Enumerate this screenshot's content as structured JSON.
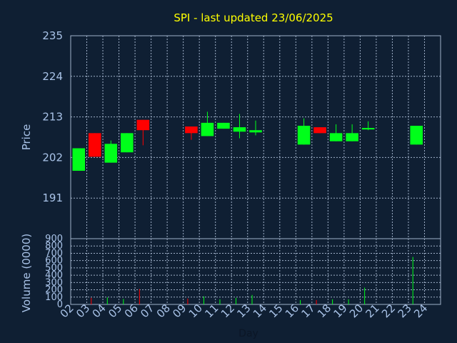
{
  "chart_data": {
    "type": "candlestick",
    "title": "SPI - last updated 23/06/2025",
    "xlabel": "Day",
    "colors": {
      "up": "#00ff1a",
      "down": "#ff0000",
      "title": "#ffff00",
      "axis": "#a9c3e8",
      "background": "#0f1f33"
    },
    "days": [
      "02",
      "03",
      "04",
      "05",
      "06",
      "07",
      "08",
      "09",
      "10",
      "11",
      "12",
      "13",
      "14",
      "15",
      "16",
      "17",
      "18",
      "19",
      "20",
      "21",
      "22",
      "23",
      "24"
    ],
    "price_panel": {
      "ylabel": "Price",
      "ylim": [
        180,
        235
      ],
      "yticks": [
        "235",
        "224",
        "213",
        "202",
        "191"
      ],
      "ytick_values": [
        235,
        224,
        213,
        202,
        191
      ],
      "candles": [
        {
          "day": 2,
          "open": 198.4,
          "close": 204.5,
          "high": 204.5,
          "low": 198.4
        },
        {
          "day": 3,
          "open": 208.6,
          "close": 202.2,
          "high": 208.6,
          "low": 202.2
        },
        {
          "day": 4,
          "open": 200.6,
          "close": 205.7,
          "high": 206.6,
          "low": 200.6
        },
        {
          "day": 5,
          "open": 203.4,
          "close": 208.6,
          "high": 208.6,
          "low": 203.4
        },
        {
          "day": 6,
          "open": 212.2,
          "close": 209.4,
          "high": 212.2,
          "low": 205.3
        },
        {
          "day": 9,
          "open": 210.4,
          "close": 208.6,
          "high": 210.4,
          "low": 206.8
        },
        {
          "day": 10,
          "open": 207.8,
          "close": 211.4,
          "high": 214.4,
          "low": 207.8
        },
        {
          "day": 11,
          "open": 209.8,
          "close": 211.4,
          "high": 211.4,
          "low": 209.8
        },
        {
          "day": 12,
          "open": 209.0,
          "close": 210.2,
          "high": 213.8,
          "low": 207.2
        },
        {
          "day": 13,
          "open": 208.8,
          "close": 209.4,
          "high": 212.0,
          "low": 208.0
        },
        {
          "day": 16,
          "open": 205.5,
          "close": 210.6,
          "high": 212.6,
          "low": 205.5
        },
        {
          "day": 17,
          "open": 210.2,
          "close": 208.6,
          "high": 210.2,
          "low": 208.6
        },
        {
          "day": 18,
          "open": 206.4,
          "close": 208.6,
          "high": 211.0,
          "low": 206.4
        },
        {
          "day": 19,
          "open": 206.4,
          "close": 208.6,
          "high": 211.0,
          "low": 206.4
        },
        {
          "day": 20,
          "open": 209.6,
          "close": 210.0,
          "high": 211.8,
          "low": 209.4
        },
        {
          "day": 23,
          "open": 205.5,
          "close": 210.6,
          "high": 210.6,
          "low": 205.5
        }
      ]
    },
    "volume_panel": {
      "ylabel": "Volume (0000)",
      "ylim": [
        0,
        900
      ],
      "yticks": [
        "900",
        "800",
        "700",
        "600",
        "500",
        "400",
        "300",
        "200",
        "100",
        "0"
      ],
      "ytick_values": [
        900,
        800,
        700,
        600,
        500,
        400,
        300,
        200,
        100,
        0
      ],
      "bars": [
        {
          "day": 3,
          "volume": 90,
          "direction": "down"
        },
        {
          "day": 4,
          "volume": 95,
          "direction": "up"
        },
        {
          "day": 5,
          "volume": 75,
          "direction": "up"
        },
        {
          "day": 6,
          "volume": 210,
          "direction": "down"
        },
        {
          "day": 9,
          "volume": 80,
          "direction": "down"
        },
        {
          "day": 10,
          "volume": 110,
          "direction": "up"
        },
        {
          "day": 11,
          "volume": 70,
          "direction": "up"
        },
        {
          "day": 12,
          "volume": 90,
          "direction": "up"
        },
        {
          "day": 13,
          "volume": 130,
          "direction": "up"
        },
        {
          "day": 16,
          "volume": 60,
          "direction": "up"
        },
        {
          "day": 17,
          "volume": 60,
          "direction": "down"
        },
        {
          "day": 18,
          "volume": 70,
          "direction": "up"
        },
        {
          "day": 19,
          "volume": 70,
          "direction": "up"
        },
        {
          "day": 20,
          "volume": 230,
          "direction": "up"
        },
        {
          "day": 23,
          "volume": 650,
          "direction": "up"
        }
      ]
    }
  }
}
